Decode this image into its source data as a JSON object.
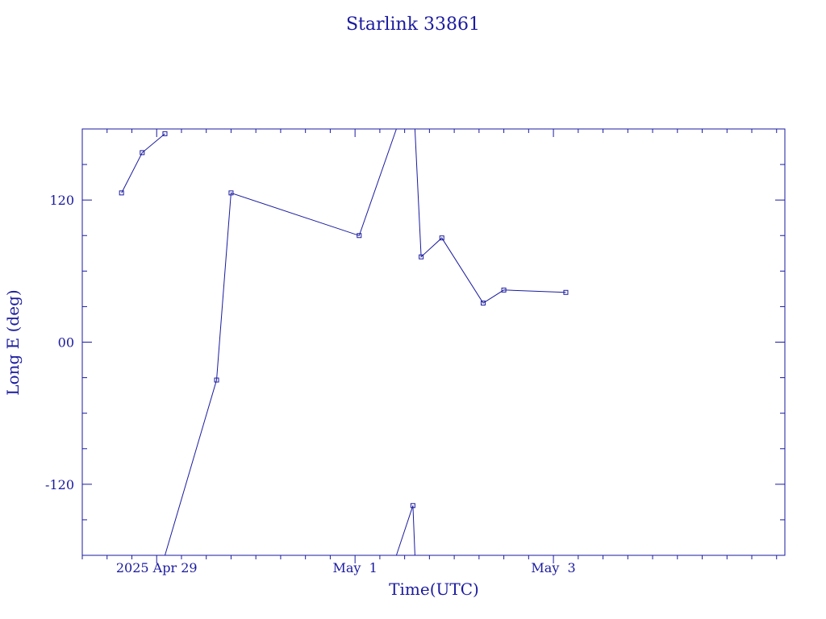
{
  "chart_data": {
    "type": "line",
    "title": "Starlink 33861",
    "xlabel": "Time(UTC)",
    "ylabel": "Long E (deg)",
    "x_tick_labels": [
      {
        "date": "2025-04-29T00:00",
        "label": "2025 Apr 29"
      },
      {
        "date": "2025-05-01T00:00",
        "label": "May  1"
      },
      {
        "date": "2025-05-03T00:00",
        "label": "May  3"
      }
    ],
    "y_tick_labels": [
      {
        "value": 120,
        "label": "120"
      },
      {
        "value": 0,
        "label": "00"
      },
      {
        "value": -120,
        "label": "-120"
      }
    ],
    "xlim": [
      "2025-04-28T06:00",
      "2025-05-05T08:00"
    ],
    "ylim": [
      -180,
      180
    ],
    "minor_x_ticks_hours": 6,
    "minor_y_step": 30,
    "color": "#1a1aa0",
    "marker": "square",
    "segments": [
      {
        "points": [
          {
            "t": "2025-04-28T15:30",
            "lon": 126
          },
          {
            "t": "2025-04-28T20:30",
            "lon": 160
          },
          {
            "t": "2025-04-29T02:00",
            "lon": 176
          }
        ]
      },
      {
        "points": [
          {
            "t": "2025-04-29T02:00",
            "lon": -180
          },
          {
            "t": "2025-04-29T14:30",
            "lon": -32
          },
          {
            "t": "2025-04-29T18:00",
            "lon": 126
          },
          {
            "t": "2025-05-01T01:00",
            "lon": 90
          },
          {
            "t": "2025-05-01T10:00",
            "lon": 180
          }
        ]
      },
      {
        "points": [
          {
            "t": "2025-05-01T10:00",
            "lon": -180
          },
          {
            "t": "2025-05-01T14:00",
            "lon": -138
          },
          {
            "t": "2025-05-01T14:30",
            "lon": -180
          }
        ]
      },
      {
        "points": [
          {
            "t": "2025-05-01T14:30",
            "lon": 180
          },
          {
            "t": "2025-05-01T16:00",
            "lon": 72
          },
          {
            "t": "2025-05-01T21:00",
            "lon": 88
          },
          {
            "t": "2025-05-02T07:00",
            "lon": 33
          },
          {
            "t": "2025-05-02T12:00",
            "lon": 44
          },
          {
            "t": "2025-05-03T03:00",
            "lon": 42
          }
        ]
      }
    ],
    "markers": [
      {
        "t": "2025-04-28T15:30",
        "lon": 126
      },
      {
        "t": "2025-04-28T20:30",
        "lon": 160
      },
      {
        "t": "2025-04-29T02:00",
        "lon": 176
      },
      {
        "t": "2025-04-29T14:30",
        "lon": -32
      },
      {
        "t": "2025-04-29T18:00",
        "lon": 126
      },
      {
        "t": "2025-05-01T01:00",
        "lon": 90
      },
      {
        "t": "2025-05-01T14:00",
        "lon": -138
      },
      {
        "t": "2025-05-01T16:00",
        "lon": 72
      },
      {
        "t": "2025-05-01T21:00",
        "lon": 88
      },
      {
        "t": "2025-05-02T07:00",
        "lon": 33
      },
      {
        "t": "2025-05-02T12:00",
        "lon": 44
      },
      {
        "t": "2025-05-03T03:00",
        "lon": 42
      }
    ]
  }
}
